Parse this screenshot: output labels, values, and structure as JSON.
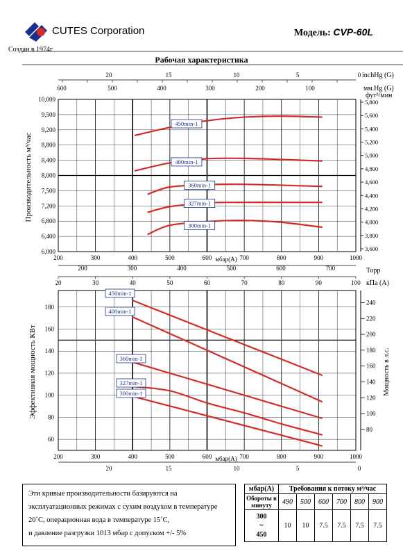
{
  "header": {
    "company": "CUTES Corporation",
    "established": "Создан в 1974г",
    "model_label": "Модель:",
    "model_name": "CVP-60L",
    "title": "Рабочая характеристика"
  },
  "colors": {
    "curve": "#d42a2a",
    "grid": "#000000",
    "label_border": "#1b2f8a",
    "label_text": "#1b2f8a"
  },
  "chart_data": [
    {
      "type": "line",
      "title": "Рабочая характеристика",
      "xlabel": "мбар(A)",
      "ylabel": "Производительность м³/час",
      "ylabel_right": "фут³/мин",
      "x_ticks": [
        "200",
        "300",
        "400",
        "500",
        "600",
        "700",
        "800",
        "900",
        "1000"
      ],
      "xlim": [
        200,
        1000
      ],
      "ylim": [
        6000,
        10000
      ],
      "y_ticks": [
        "6,000",
        "6,400",
        "6,800",
        "7,200",
        "7,500",
        "8,000",
        "8,400",
        "8,800",
        "9,200",
        "9,500",
        "10,000"
      ],
      "y_right_ticks": [
        "3,600",
        "3,800",
        "4,000",
        "4,200",
        "4,400",
        "4,600",
        "4,800",
        "5,000",
        "5,200",
        "5,400",
        "5,600",
        "5,800"
      ],
      "top_axis_inhg_label": "inchHg (G)",
      "top_axis_inhg_ticks": [
        "20",
        "15",
        "10",
        "5",
        "0"
      ],
      "top_axis_mmhg_label": "мм.Hg (G)",
      "top_axis_mmhg_ticks": [
        "600",
        "500",
        "400",
        "300",
        "200",
        "100"
      ],
      "series": [
        {
          "name": "450min-1",
          "x": [
            405,
            500,
            600,
            700,
            800,
            910
          ],
          "y": [
            9050,
            9250,
            9380,
            9450,
            9470,
            9450
          ]
        },
        {
          "name": "400min-1",
          "x": [
            405,
            500,
            600,
            700,
            800,
            910
          ],
          "y": [
            8120,
            8330,
            8440,
            8450,
            8420,
            8380
          ]
        },
        {
          "name": "360min-1",
          "x": [
            440,
            500,
            600,
            700,
            800,
            910
          ],
          "y": [
            7430,
            7620,
            7700,
            7710,
            7680,
            7640
          ]
        },
        {
          "name": "327min-1",
          "x": [
            440,
            500,
            600,
            700,
            800,
            910
          ],
          "y": [
            7030,
            7180,
            7260,
            7270,
            7270,
            7270
          ]
        },
        {
          "name": "300min-1",
          "x": [
            440,
            500,
            600,
            700,
            800,
            910
          ],
          "y": [
            6450,
            6690,
            6790,
            6820,
            6770,
            6640
          ]
        }
      ]
    },
    {
      "type": "line",
      "xlabel": "мбар(A)",
      "ylabel": "Эффективная мощность КВт",
      "ylabel_right": "Мощность в л.с.",
      "x_ticks": [
        "200",
        "300",
        "400",
        "500",
        "600",
        "700",
        "800",
        "900",
        "1000"
      ],
      "xlim": [
        200,
        1000
      ],
      "ylim": [
        50,
        195
      ],
      "y_ticks": [
        "60",
        "80",
        "100",
        "120",
        "140",
        "160",
        "180"
      ],
      "y_right_ticks": [
        "80",
        "100",
        "120",
        "140",
        "160",
        "180",
        "200",
        "220",
        "240"
      ],
      "top_axis_torr_label": "Торр",
      "top_axis_torr_ticks": [
        "200",
        "300",
        "400",
        "500",
        "600",
        "700"
      ],
      "top_axis_kpa_label": "кПа (А)",
      "top_axis_kpa_ticks": [
        "20",
        "30",
        "40",
        "50",
        "60",
        "70",
        "80",
        "90",
        "100"
      ],
      "bottom_axis_inhg_ticks": [
        "20",
        "15",
        "10",
        "5",
        "0"
      ],
      "series": [
        {
          "name": "450min-1",
          "x": [
            400,
            910
          ],
          "y": [
            186,
            118
          ]
        },
        {
          "name": "400min-1",
          "x": [
            400,
            910
          ],
          "y": [
            171,
            94
          ]
        },
        {
          "name": "360min-1",
          "x": [
            400,
            910
          ],
          "y": [
            130,
            79
          ]
        },
        {
          "name": "327min-1",
          "x": [
            400,
            500,
            600,
            700,
            800,
            910
          ],
          "y": [
            108,
            104,
            93,
            84,
            74,
            64
          ]
        },
        {
          "name": "300min-1",
          "x": [
            400,
            910
          ],
          "y": [
            99,
            54
          ]
        }
      ]
    }
  ],
  "notes": [
    "Эти кривые производительности базируются на",
    "эксплуатационных режимах с сухим воздухом в температуре",
    "20˚С, операционная вода в температуре 15˚С,",
    "и давление разгрузки 1013 мбар с допуском +/- 5%"
  ],
  "requirements": {
    "col_header": "мбар(A)",
    "title": "Требования к потоку м³/час",
    "row_header": "Обороты в минуту",
    "pressures": [
      "490",
      "500",
      "600",
      "700",
      "800",
      "900"
    ],
    "rpm_range": [
      "300",
      "~",
      "450"
    ],
    "values": [
      "10",
      "10",
      "7.5",
      "7.5",
      "7.5",
      "7.5"
    ]
  }
}
